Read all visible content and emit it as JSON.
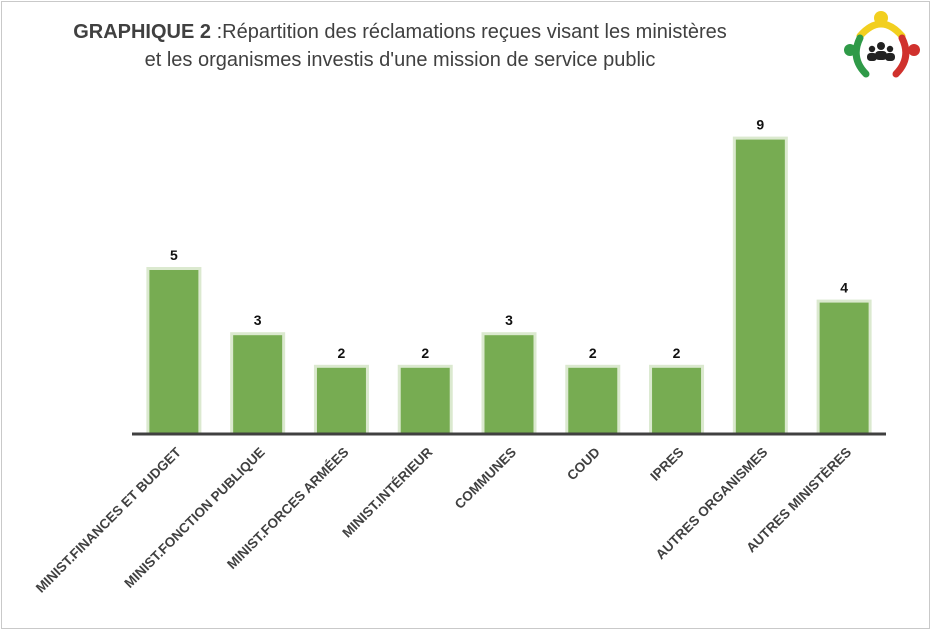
{
  "title": {
    "prefix": "GRAPHIQUE 2",
    "line1": " :Répartition des réclamations reçues visant les ministères",
    "line2": "et les organismes investis d'une mission de service public"
  },
  "colors": {
    "bar": "#77ac52",
    "bar_shadow": "#dbe9cf",
    "axis": "#404040",
    "title": "#404040",
    "logo_yellow": "#f2cf1f",
    "logo_green": "#2f9a48",
    "logo_red": "#d0312d"
  },
  "logo": {
    "icon": "people-group-icon"
  },
  "chart_data": {
    "type": "bar",
    "categories": [
      "MINIST.FINANCES ET BUDGET",
      "MINIST.FONCTION PUBLIQUE",
      "MINIST.FORCES ARMÉES",
      "MINIST.INTÉRIEUR",
      "COMMUNES",
      "COUD",
      "IPRES",
      "AUTRES ORGANISMES",
      "AUTRES MINISTÈRES"
    ],
    "values": [
      5,
      3,
      2,
      2,
      3,
      2,
      2,
      9,
      4
    ],
    "ylim": [
      0,
      10
    ],
    "grid": false,
    "data_labels": true,
    "xlabel": "",
    "ylabel": ""
  }
}
